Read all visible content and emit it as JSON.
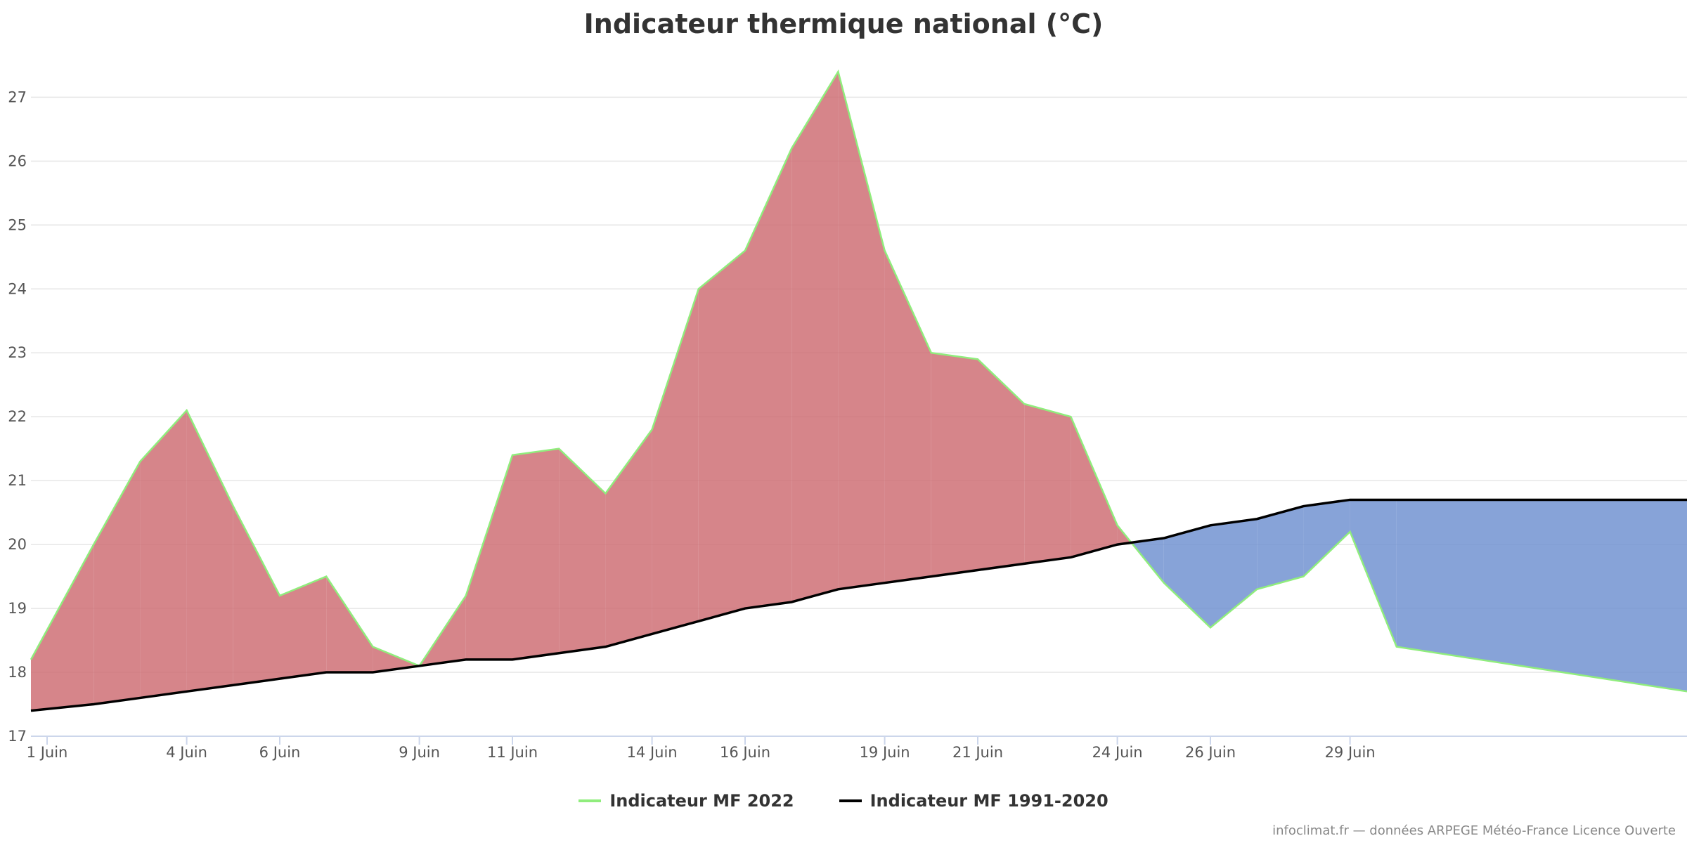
{
  "title": "Indicateur thermique national (°C)",
  "credits": "infoclimat.fr — données ARPEGE Météo-France Licence Ouverte",
  "colors": {
    "series_2022": "#90ed7d",
    "series_normal": "#000000",
    "above_fill": "#cd6a70",
    "below_fill": "#6c8fcf",
    "grid": "#e6e6e6",
    "axis": "#ccd6eb"
  },
  "legend": {
    "item_2022": "Indicateur MF 2022",
    "item_normal": "Indicateur MF 1991-2020"
  },
  "chart_data": {
    "type": "area",
    "title": "Indicateur thermique national (°C)",
    "xlabel": "",
    "ylabel": "",
    "ylim": [
      17,
      27.8
    ],
    "y_ticks": [
      17,
      18,
      19,
      20,
      21,
      22,
      23,
      24,
      25,
      26,
      27
    ],
    "x": [
      "1 Juin",
      "2 Juin",
      "3 Juin",
      "4 Juin",
      "5 Juin",
      "6 Juin",
      "7 Juin",
      "8 Juin",
      "9 Juin",
      "10 Juin",
      "11 Juin",
      "12 Juin",
      "13 Juin",
      "14 Juin",
      "15 Juin",
      "16 Juin",
      "17 Juin",
      "18 Juin",
      "19 Juin",
      "20 Juin",
      "21 Juin",
      "22 Juin",
      "23 Juin",
      "24 Juin",
      "25 Juin",
      "26 Juin",
      "27 Juin",
      "28 Juin",
      "29 Juin",
      "30 Juin"
    ],
    "x_tick_labels": [
      {
        "index": 0,
        "label": "1 Juin"
      },
      {
        "index": 3,
        "label": "4 Juin"
      },
      {
        "index": 5,
        "label": "6 Juin"
      },
      {
        "index": 8,
        "label": "9 Juin"
      },
      {
        "index": 10,
        "label": "11 Juin"
      },
      {
        "index": 13,
        "label": "14 Juin"
      },
      {
        "index": 15,
        "label": "16 Juin"
      },
      {
        "index": 18,
        "label": "19 Juin"
      },
      {
        "index": 20,
        "label": "21 Juin"
      },
      {
        "index": 23,
        "label": "24 Juin"
      },
      {
        "index": 25,
        "label": "26 Juin"
      },
      {
        "index": 28,
        "label": "29 Juin"
      }
    ],
    "series": [
      {
        "name": "Indicateur MF 2022",
        "values": [
          18.2,
          20.0,
          21.3,
          22.1,
          20.6,
          19.2,
          19.5,
          18.4,
          18.1,
          19.2,
          21.4,
          21.5,
          20.8,
          21.8,
          24.0,
          24.6,
          26.2,
          27.4,
          24.6,
          23.0,
          22.9,
          22.2,
          22.0,
          20.3,
          19.4,
          18.7,
          19.3,
          19.5,
          20.2,
          18.4
        ]
      },
      {
        "name": "Indicateur MF 1991-2020",
        "values": [
          17.4,
          17.5,
          17.6,
          17.7,
          17.8,
          17.9,
          18.0,
          18.0,
          18.1,
          18.2,
          18.2,
          18.3,
          18.4,
          18.6,
          18.8,
          19.0,
          19.1,
          19.3,
          19.4,
          19.5,
          19.6,
          19.7,
          19.8,
          20.0,
          20.1,
          20.3,
          20.4,
          20.6,
          20.7,
          20.7
        ]
      }
    ],
    "extension_end": {
      "series_2022": 17.7,
      "series_normal": 20.7
    },
    "grid": true,
    "legend_position": "bottom-center"
  }
}
